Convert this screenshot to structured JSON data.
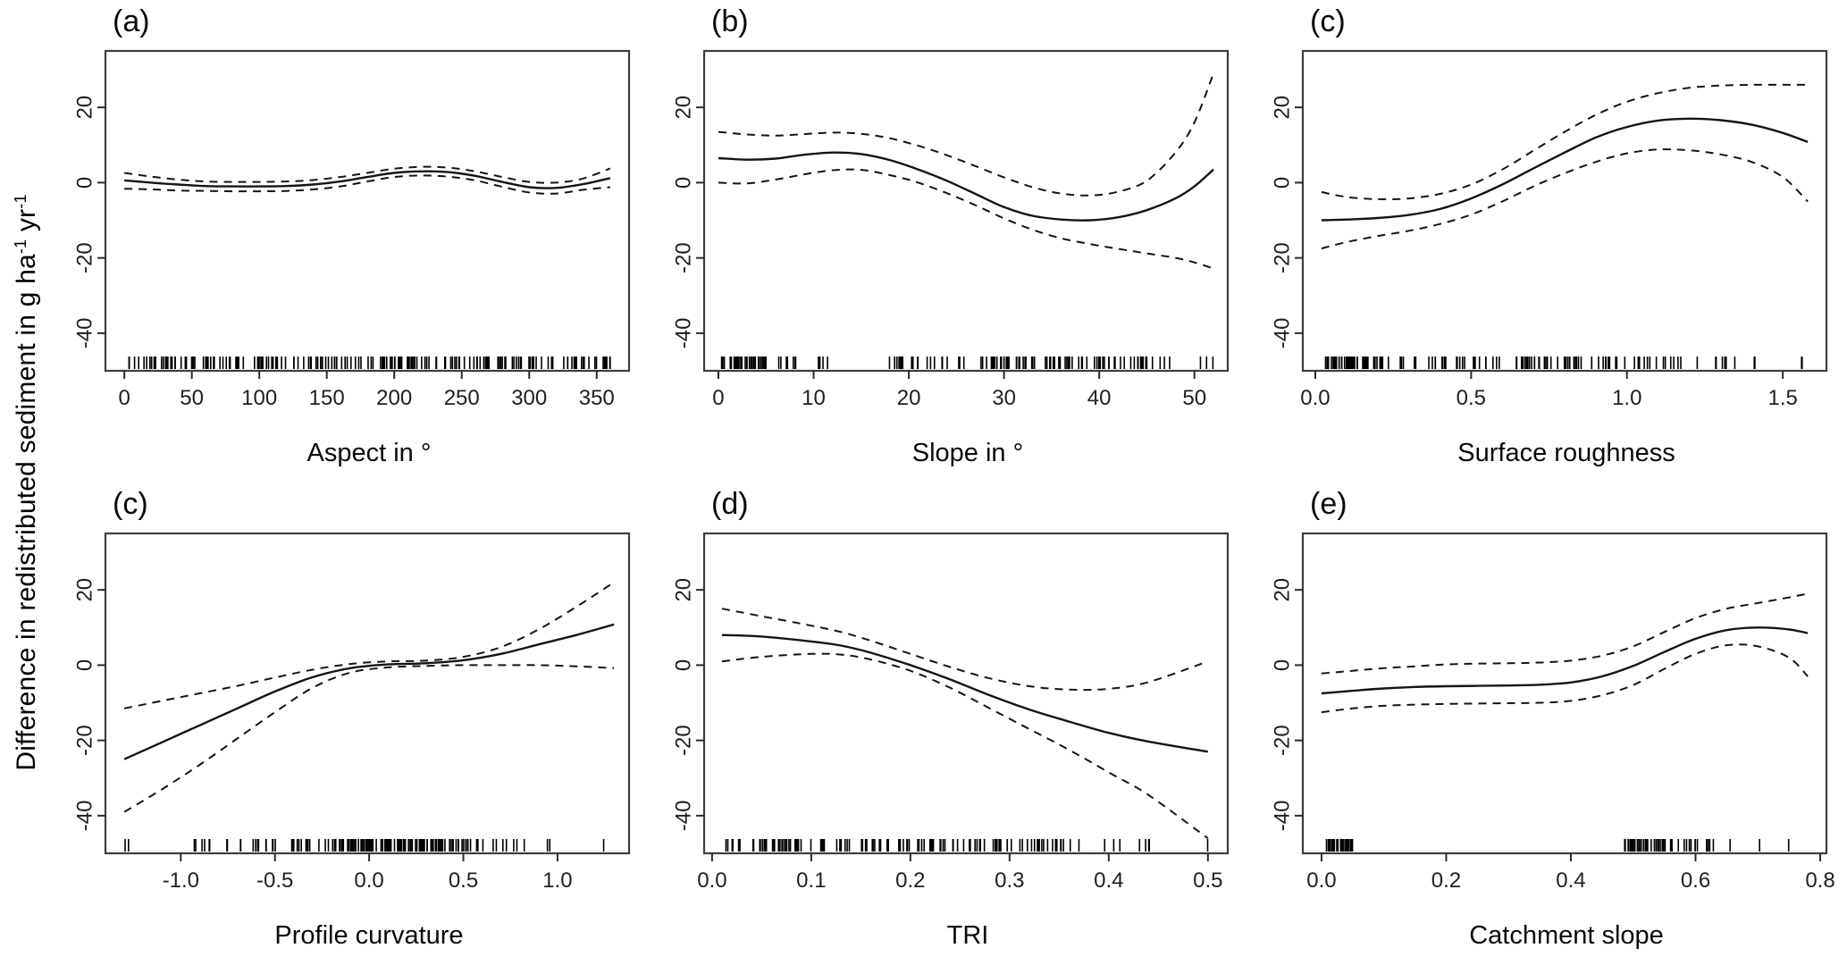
{
  "figure": {
    "ylabel_parts": {
      "t1": "Difference in redistributed sediment in g ha",
      "s1": "-1",
      "t2": " yr",
      "s2": "-1"
    }
  },
  "style": {
    "line_color": "#141414",
    "box_color": "#3d3d3d",
    "tick_color": "#2b2b2b",
    "tick_label_color": "#1f1f1f",
    "dash_pattern": "9 7"
  },
  "chart_data": [
    {
      "type": "line",
      "panel_label": "(a)",
      "xlabel": "Aspect in °",
      "ylim": [
        -50,
        35
      ],
      "xlim": [
        -14,
        374
      ],
      "y_ticks": [
        "20",
        "0",
        "-20",
        "-40"
      ],
      "y_tick_values": [
        20,
        0,
        -20,
        -40
      ],
      "x_ticks": [
        "0",
        "50",
        "100",
        "150",
        "200",
        "250",
        "300",
        "350"
      ],
      "x_tick_values": [
        0,
        50,
        100,
        150,
        200,
        250,
        300,
        350
      ],
      "series": [
        {
          "name": "fit",
          "style": "solid",
          "x": [
            0,
            20,
            40,
            60,
            80,
            100,
            120,
            140,
            160,
            180,
            200,
            220,
            240,
            260,
            280,
            300,
            320,
            340,
            360
          ],
          "y": [
            0.6,
            0,
            -0.5,
            -0.9,
            -1,
            -1,
            -0.9,
            -0.5,
            0.3,
            1.5,
            2.6,
            3,
            2.8,
            1.8,
            0.2,
            -1.2,
            -1.4,
            -0.4,
            1.2
          ]
        },
        {
          "name": "upper_ci",
          "style": "dashed",
          "x": [
            0,
            20,
            40,
            60,
            80,
            100,
            120,
            140,
            160,
            180,
            200,
            220,
            240,
            260,
            280,
            300,
            320,
            340,
            360
          ],
          "y": [
            2.6,
            1.6,
            0.8,
            0.3,
            0.2,
            0.2,
            0.3,
            0.7,
            1.5,
            2.6,
            3.7,
            4.2,
            4,
            3,
            1.5,
            0.2,
            0,
            1.1,
            3.8
          ]
        },
        {
          "name": "lower_ci",
          "style": "dashed",
          "x": [
            0,
            20,
            40,
            60,
            80,
            100,
            120,
            140,
            160,
            180,
            200,
            220,
            240,
            260,
            280,
            300,
            320,
            340,
            360
          ],
          "y": [
            -1.6,
            -1.8,
            -2.1,
            -2.2,
            -2.3,
            -2.3,
            -2.2,
            -1.8,
            -1,
            0.3,
            1.5,
            1.9,
            1.6,
            0.6,
            -1.1,
            -2.6,
            -2.9,
            -1.9,
            -1.2
          ]
        }
      ],
      "rug_clusters": [
        [
          3,
          90,
          48
        ],
        [
          92,
          158,
          36
        ],
        [
          160,
          178,
          7
        ],
        [
          180,
          252,
          44
        ],
        [
          254,
          360,
          58
        ]
      ]
    },
    {
      "type": "line",
      "panel_label": "(b)",
      "xlabel": "Slope in °",
      "ylim": [
        -50,
        35
      ],
      "xlim": [
        -1.5,
        53.5
      ],
      "y_ticks": [
        "20",
        "0",
        "-20",
        "-40"
      ],
      "y_tick_values": [
        20,
        0,
        -20,
        -40
      ],
      "x_ticks": [
        "0",
        "10",
        "20",
        "30",
        "40",
        "50"
      ],
      "x_tick_values": [
        0,
        10,
        20,
        30,
        40,
        50
      ],
      "series": [
        {
          "name": "fit",
          "style": "solid",
          "x": [
            0,
            3,
            6,
            9,
            12,
            15,
            18,
            21,
            24,
            27,
            30,
            33,
            36,
            39,
            42,
            45,
            48,
            50,
            52
          ],
          "y": [
            6.5,
            6.1,
            6.4,
            7.4,
            8,
            7.6,
            6,
            3.5,
            0.5,
            -3,
            -6.5,
            -8.8,
            -9.8,
            -10,
            -9.2,
            -7.3,
            -4.2,
            -1,
            3.5
          ]
        },
        {
          "name": "upper_ci",
          "style": "dashed",
          "x": [
            0,
            3,
            6,
            9,
            12,
            15,
            18,
            21,
            24,
            27,
            30,
            33,
            36,
            39,
            42,
            45,
            48,
            50,
            52
          ],
          "y": [
            13.5,
            12.8,
            12.5,
            12.9,
            13.3,
            13,
            11.8,
            9.8,
            7.3,
            4.4,
            1.4,
            -1.2,
            -2.9,
            -3.4,
            -2.4,
            0.5,
            8,
            16,
            29
          ]
        },
        {
          "name": "lower_ci",
          "style": "dashed",
          "x": [
            0,
            3,
            6,
            9,
            12,
            15,
            18,
            21,
            24,
            27,
            30,
            33,
            36,
            39,
            42,
            45,
            48,
            50,
            52
          ],
          "y": [
            0,
            -0.2,
            0.8,
            2.2,
            3.3,
            3.4,
            2,
            0,
            -2.8,
            -6,
            -9.5,
            -12.5,
            -14.8,
            -16.3,
            -17.6,
            -18.8,
            -20,
            -21.2,
            -22.8
          ]
        }
      ],
      "rug_clusters": [
        [
          0.3,
          5,
          45
        ],
        [
          5.5,
          9,
          7
        ],
        [
          10,
          11.5,
          4
        ],
        [
          17,
          20,
          8
        ],
        [
          20,
          45,
          85
        ],
        [
          45.5,
          48,
          4
        ],
        [
          50,
          52,
          3
        ]
      ]
    },
    {
      "type": "line",
      "panel_label": "(c)",
      "xlabel": "Surface roughness",
      "ylim": [
        -50,
        35
      ],
      "xlim": [
        -0.04,
        1.64
      ],
      "y_ticks": [
        "20",
        "0",
        "-20",
        "-40"
      ],
      "y_tick_values": [
        20,
        0,
        -20,
        -40
      ],
      "x_ticks": [
        "0.0",
        "0.5",
        "1.0",
        "1.5"
      ],
      "x_tick_values": [
        0,
        0.5,
        1,
        1.5
      ],
      "series": [
        {
          "name": "fit",
          "style": "solid",
          "x": [
            0.02,
            0.1,
            0.2,
            0.3,
            0.4,
            0.5,
            0.6,
            0.7,
            0.8,
            0.9,
            1.0,
            1.1,
            1.2,
            1.3,
            1.4,
            1.5,
            1.58
          ],
          "y": [
            -10,
            -9.8,
            -9.4,
            -8.6,
            -7,
            -4.2,
            -0.5,
            3.8,
            8,
            12,
            14.8,
            16.5,
            17,
            16.6,
            15.4,
            13.2,
            10.8
          ]
        },
        {
          "name": "upper_ci",
          "style": "dashed",
          "x": [
            0.02,
            0.1,
            0.2,
            0.3,
            0.4,
            0.5,
            0.6,
            0.7,
            0.8,
            0.9,
            1.0,
            1.1,
            1.2,
            1.3,
            1.4,
            1.5,
            1.58
          ],
          "y": [
            -2.5,
            -3.8,
            -4.4,
            -4.2,
            -3,
            -0.5,
            3.5,
            8.5,
            13.5,
            18,
            21.5,
            23.8,
            25.2,
            25.8,
            26,
            26,
            26
          ]
        },
        {
          "name": "lower_ci",
          "style": "dashed",
          "x": [
            0.02,
            0.1,
            0.2,
            0.3,
            0.4,
            0.5,
            0.6,
            0.7,
            0.8,
            0.9,
            1.0,
            1.1,
            1.2,
            1.3,
            1.4,
            1.5,
            1.58
          ],
          "y": [
            -17.5,
            -15.8,
            -14.2,
            -12.8,
            -11,
            -8.5,
            -5,
            -1,
            2.5,
            5.5,
            7.8,
            8.8,
            8.6,
            7.5,
            5.5,
            1.5,
            -5
          ]
        }
      ],
      "rug_clusters": [
        [
          0.02,
          0.17,
          42
        ],
        [
          0.18,
          0.44,
          22
        ],
        [
          0.45,
          0.95,
          55
        ],
        [
          0.96,
          1.18,
          16
        ],
        [
          1.2,
          1.44,
          9
        ],
        [
          1.56,
          1.58,
          2
        ]
      ]
    },
    {
      "type": "line",
      "panel_label": "(c)",
      "xlabel": "Profile curvature",
      "ylim": [
        -50,
        35
      ],
      "xlim": [
        -1.4,
        1.38
      ],
      "y_ticks": [
        "20",
        "0",
        "-20",
        "-40"
      ],
      "y_tick_values": [
        20,
        0,
        -20,
        -40
      ],
      "x_ticks": [
        "-1.0",
        "-0.5",
        "0.0",
        "0.5",
        "1.0"
      ],
      "x_tick_values": [
        -1,
        -0.5,
        0,
        0.5,
        1
      ],
      "series": [
        {
          "name": "fit",
          "style": "solid",
          "x": [
            -1.3,
            -1.1,
            -0.9,
            -0.7,
            -0.5,
            -0.3,
            -0.1,
            0.1,
            0.3,
            0.5,
            0.7,
            0.9,
            1.1,
            1.3
          ],
          "y": [
            -25,
            -20.5,
            -16,
            -11.5,
            -7,
            -3.2,
            -0.8,
            0.2,
            0.5,
            1.3,
            3,
            5.5,
            8,
            10.8
          ]
        },
        {
          "name": "upper_ci",
          "style": "dashed",
          "x": [
            -1.3,
            -1.1,
            -0.9,
            -0.7,
            -0.5,
            -0.3,
            -0.1,
            0.1,
            0.3,
            0.5,
            0.7,
            0.9,
            1.1,
            1.3
          ],
          "y": [
            -11.5,
            -9.5,
            -7.5,
            -5.5,
            -3.3,
            -1.2,
            0.3,
            1,
            1.2,
            2.2,
            4.8,
            9.5,
            15.5,
            22
          ]
        },
        {
          "name": "lower_ci",
          "style": "dashed",
          "x": [
            -1.3,
            -1.1,
            -0.9,
            -0.7,
            -0.5,
            -0.3,
            -0.1,
            0.1,
            0.3,
            0.5,
            0.7,
            0.9,
            1.1,
            1.3
          ],
          "y": [
            -39,
            -33,
            -26.5,
            -19.5,
            -12.5,
            -6,
            -2,
            -0.6,
            -0.2,
            0,
            0,
            0,
            -0.3,
            -0.8
          ]
        }
      ],
      "rug_clusters": [
        [
          -1.3,
          -1.27,
          2
        ],
        [
          -0.93,
          -0.82,
          6
        ],
        [
          -0.76,
          -0.68,
          4
        ],
        [
          -0.62,
          -0.45,
          9
        ],
        [
          -0.44,
          -0.21,
          14
        ],
        [
          -0.2,
          0.3,
          90
        ],
        [
          0.3,
          0.55,
          30
        ],
        [
          0.56,
          0.84,
          12
        ],
        [
          0.93,
          0.97,
          3
        ],
        [
          1.24,
          1.26,
          1
        ]
      ]
    },
    {
      "type": "line",
      "panel_label": "(d)",
      "xlabel": "TRI",
      "ylim": [
        -50,
        35
      ],
      "xlim": [
        -0.008,
        0.52
      ],
      "y_ticks": [
        "20",
        "0",
        "-20",
        "-40"
      ],
      "y_tick_values": [
        20,
        0,
        -20,
        -40
      ],
      "x_ticks": [
        "0.0",
        "0.1",
        "0.2",
        "0.3",
        "0.4",
        "0.5"
      ],
      "x_tick_values": [
        0,
        0.1,
        0.2,
        0.3,
        0.4,
        0.5
      ],
      "series": [
        {
          "name": "fit",
          "style": "solid",
          "x": [
            0.01,
            0.05,
            0.1,
            0.13,
            0.16,
            0.2,
            0.24,
            0.28,
            0.32,
            0.36,
            0.4,
            0.44,
            0.5
          ],
          "y": [
            8,
            7.6,
            6.3,
            5.2,
            3.3,
            0,
            -3.8,
            -8,
            -11.8,
            -15,
            -18,
            -20.3,
            -23
          ]
        },
        {
          "name": "upper_ci",
          "style": "dashed",
          "x": [
            0.01,
            0.05,
            0.1,
            0.13,
            0.16,
            0.2,
            0.24,
            0.28,
            0.32,
            0.36,
            0.4,
            0.44,
            0.5
          ],
          "y": [
            15,
            13,
            10.5,
            8.8,
            6.5,
            3,
            -0.5,
            -3.5,
            -5.6,
            -6.5,
            -6.3,
            -4.5,
            1
          ]
        },
        {
          "name": "lower_ci",
          "style": "dashed",
          "x": [
            0.01,
            0.05,
            0.1,
            0.13,
            0.16,
            0.2,
            0.24,
            0.28,
            0.32,
            0.36,
            0.4,
            0.44,
            0.5
          ],
          "y": [
            1,
            2.2,
            3,
            2.8,
            1.5,
            -1.5,
            -6,
            -11.5,
            -17,
            -22.5,
            -28.5,
            -34.5,
            -46
          ]
        }
      ],
      "rug_clusters": [
        [
          0.01,
          0.09,
          34
        ],
        [
          0.095,
          0.14,
          12
        ],
        [
          0.145,
          0.37,
          75
        ],
        [
          0.38,
          0.45,
          7
        ],
        [
          0.497,
          0.5,
          1
        ]
      ]
    },
    {
      "type": "line",
      "panel_label": "(e)",
      "xlabel": "Catchment slope",
      "ylim": [
        -50,
        35
      ],
      "xlim": [
        -0.03,
        0.81
      ],
      "y_ticks": [
        "20",
        "0",
        "-20",
        "-40"
      ],
      "y_tick_values": [
        20,
        0,
        -20,
        -40
      ],
      "x_ticks": [
        "0.0",
        "0.2",
        "0.4",
        "0.6",
        "0.8"
      ],
      "x_tick_values": [
        0,
        0.2,
        0.4,
        0.6,
        0.8
      ],
      "series": [
        {
          "name": "fit",
          "style": "solid",
          "x": [
            0,
            0.05,
            0.1,
            0.15,
            0.2,
            0.25,
            0.3,
            0.35,
            0.4,
            0.45,
            0.5,
            0.55,
            0.6,
            0.65,
            0.7,
            0.75,
            0.78
          ],
          "y": [
            -7.5,
            -6.8,
            -6.2,
            -5.8,
            -5.6,
            -5.5,
            -5.4,
            -5.2,
            -4.6,
            -3,
            -0.2,
            3.5,
            7,
            9.3,
            10,
            9.5,
            8.5
          ]
        },
        {
          "name": "upper_ci",
          "style": "dashed",
          "x": [
            0,
            0.05,
            0.1,
            0.15,
            0.2,
            0.25,
            0.3,
            0.35,
            0.4,
            0.45,
            0.5,
            0.55,
            0.6,
            0.65,
            0.7,
            0.75,
            0.78
          ],
          "y": [
            -2.2,
            -1.5,
            -0.8,
            -0.3,
            0.2,
            0.4,
            0.5,
            0.7,
            1.2,
            2.5,
            5,
            8.8,
            12.5,
            15,
            16.5,
            18,
            19
          ]
        },
        {
          "name": "lower_ci",
          "style": "dashed",
          "x": [
            0,
            0.05,
            0.1,
            0.15,
            0.2,
            0.25,
            0.3,
            0.35,
            0.4,
            0.45,
            0.5,
            0.55,
            0.6,
            0.65,
            0.7,
            0.75,
            0.78
          ],
          "y": [
            -12.5,
            -11.5,
            -10.8,
            -10.5,
            -10.3,
            -10.2,
            -10.1,
            -10,
            -9.5,
            -8,
            -5.3,
            -1,
            3,
            5.3,
            5,
            2,
            -3
          ]
        }
      ],
      "rug_clusters": [
        [
          0.003,
          0.05,
          28
        ],
        [
          0.48,
          0.565,
          42
        ],
        [
          0.57,
          0.63,
          12
        ],
        [
          0.655,
          0.662,
          1
        ],
        [
          0.7,
          0.707,
          1
        ],
        [
          0.745,
          0.752,
          1
        ]
      ]
    }
  ]
}
